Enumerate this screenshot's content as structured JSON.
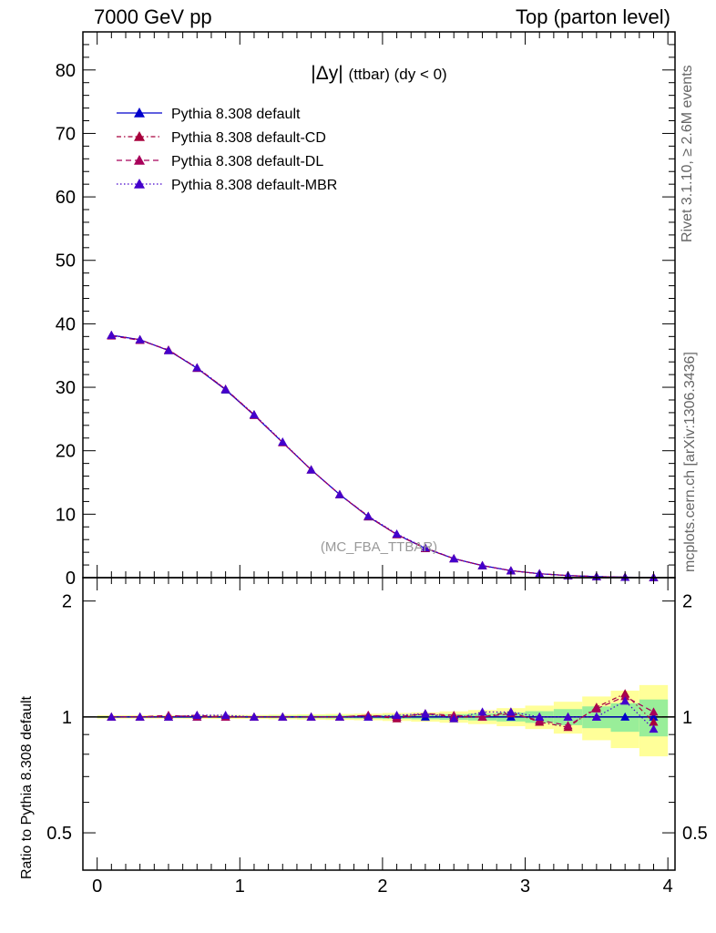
{
  "header": {
    "left": "7000 GeV pp",
    "right": "Top (parton level)"
  },
  "side_labels": {
    "rivet": "Rivet 3.1.10, ≥ 2.6M events",
    "mcplots": "mcplots.cern.ch [arXiv:1306.3436]"
  },
  "chart_data": [
    {
      "type": "line",
      "title_main": "|Δy|",
      "title_sub": "(ttbar) (dy < 0)",
      "watermark": "(MC_FBA_TTBAR)",
      "xlim": [
        -0.1,
        4.05
      ],
      "ylim": [
        0,
        86
      ],
      "y_ticks": [
        0,
        10,
        20,
        30,
        40,
        50,
        60,
        70,
        80
      ],
      "x": [
        0.1,
        0.3,
        0.5,
        0.7,
        0.9,
        1.1,
        1.3,
        1.5,
        1.7,
        1.9,
        2.1,
        2.3,
        2.5,
        2.7,
        2.9,
        3.1,
        3.3,
        3.5,
        3.7,
        3.9
      ],
      "series": [
        {
          "name": "Pythia 8.308 default",
          "color": "#0000cc",
          "dash": "",
          "values": [
            38.2,
            37.5,
            35.8,
            33.0,
            29.6,
            25.6,
            21.3,
            17.0,
            13.1,
            9.6,
            6.8,
            4.6,
            3.0,
            1.9,
            1.1,
            0.62,
            0.33,
            0.17,
            0.07,
            0.03
          ]
        },
        {
          "name": "Pythia 8.308 default-CD",
          "color": "#a8003c",
          "dash": "5,3,1.5,3",
          "values": [
            38.2,
            37.5,
            35.8,
            33.1,
            29.7,
            25.7,
            21.3,
            17.0,
            13.1,
            9.6,
            6.8,
            4.6,
            3.0,
            1.9,
            1.1,
            0.62,
            0.33,
            0.17,
            0.07,
            0.03
          ]
        },
        {
          "name": "Pythia 8.308 default-DL",
          "color": "#a8005a",
          "dash": "6,4",
          "values": [
            38.1,
            37.4,
            35.9,
            33.0,
            29.7,
            25.6,
            21.3,
            17.0,
            13.1,
            9.7,
            6.8,
            4.7,
            3.0,
            1.9,
            1.1,
            0.62,
            0.33,
            0.17,
            0.07,
            0.03
          ]
        },
        {
          "name": "Pythia 8.308 default-MBR",
          "color": "#4400cc",
          "dash": "1.5,2.5",
          "values": [
            38.2,
            37.5,
            35.8,
            33.1,
            29.7,
            25.7,
            21.4,
            17.0,
            13.1,
            9.7,
            6.9,
            4.7,
            3.0,
            1.9,
            1.1,
            0.62,
            0.33,
            0.17,
            0.07,
            0.03
          ]
        }
      ]
    },
    {
      "type": "line",
      "ylabel": "Ratio to Pythia 8.308 default",
      "xlim": [
        -0.1,
        4.05
      ],
      "ylim": [
        0.4,
        2.3
      ],
      "y_ticks": [
        0.5,
        1,
        2
      ],
      "x_ticks": [
        0,
        1,
        2,
        3,
        4
      ],
      "x": [
        0.1,
        0.3,
        0.5,
        0.7,
        0.9,
        1.1,
        1.3,
        1.5,
        1.7,
        1.9,
        2.1,
        2.3,
        2.5,
        2.7,
        2.9,
        3.1,
        3.3,
        3.5,
        3.7,
        3.9
      ],
      "band_green": [
        0.005,
        0.005,
        0.005,
        0.005,
        0.006,
        0.006,
        0.007,
        0.008,
        0.009,
        0.01,
        0.012,
        0.014,
        0.017,
        0.021,
        0.027,
        0.035,
        0.048,
        0.065,
        0.085,
        0.11
      ],
      "band_yellow": [
        0.01,
        0.01,
        0.01,
        0.011,
        0.012,
        0.012,
        0.014,
        0.016,
        0.018,
        0.02,
        0.024,
        0.028,
        0.034,
        0.042,
        0.054,
        0.07,
        0.095,
        0.13,
        0.17,
        0.21
      ],
      "series": [
        {
          "name": "Pythia 8.308 default",
          "color": "#0000cc",
          "values": [
            1,
            1,
            1,
            1,
            1,
            1,
            1,
            1,
            1,
            1,
            1,
            1,
            1,
            1,
            1,
            1,
            1,
            1,
            1,
            1
          ]
        },
        {
          "name": "Pythia 8.308 default-CD",
          "color": "#a8003c",
          "values": [
            1.0,
            1.0,
            1.0,
            1.01,
            1.0,
            1.0,
            1.0,
            1.0,
            1.0,
            1.01,
            0.99,
            1.02,
            1.0,
            1.0,
            1.03,
            0.97,
            0.94,
            1.06,
            1.15,
            0.97
          ]
        },
        {
          "name": "Pythia 8.308 default-DL",
          "color": "#a8005a",
          "values": [
            1.0,
            1.0,
            1.01,
            1.0,
            1.0,
            1.0,
            1.0,
            1.0,
            1.0,
            1.01,
            1.0,
            1.02,
            1.01,
            1.0,
            1.02,
            0.98,
            0.95,
            1.05,
            1.13,
            1.03
          ]
        },
        {
          "name": "Pythia 8.308 default-MBR",
          "color": "#4400cc",
          "values": [
            1.0,
            1.0,
            1.0,
            1.01,
            1.01,
            1.0,
            1.0,
            1.0,
            1.0,
            1.0,
            1.01,
            1.02,
            0.99,
            1.03,
            1.03,
            1.0,
            1.0,
            1.0,
            1.1,
            0.93
          ]
        }
      ]
    }
  ]
}
